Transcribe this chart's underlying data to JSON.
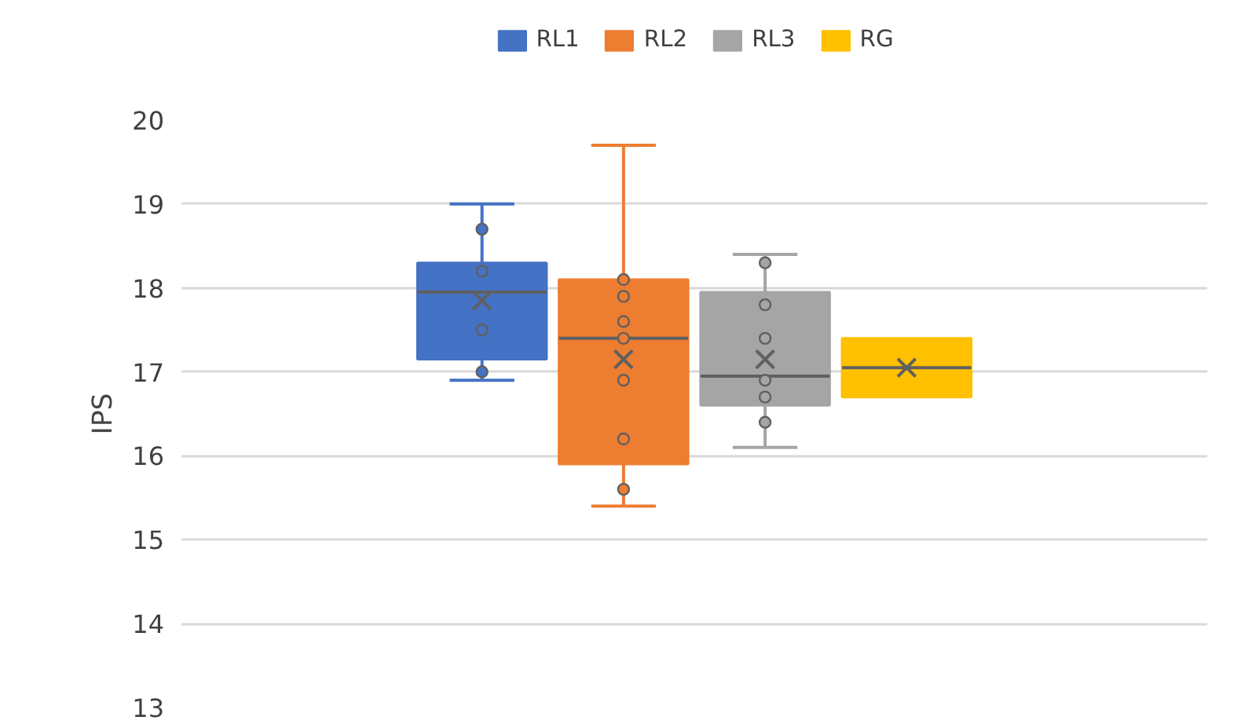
{
  "chart_data": {
    "type": "box",
    "ylabel": "IPS",
    "categories": [
      null
    ],
    "ylim": [
      13,
      20
    ],
    "yticks": [
      13,
      14,
      15,
      16,
      17,
      18,
      19,
      20
    ],
    "grid": "y",
    "legend": "top",
    "tick_labels": "y",
    "series": [
      {
        "name": "RL1",
        "color": "#4472c4",
        "boxes": [
          {
            "low": 16.9,
            "q1": 17.15,
            "median": 17.95,
            "q3": 18.3,
            "high": 19.0,
            "mean": 17.85
          }
        ]
      },
      {
        "name": "RL2",
        "color": "#ed7d31",
        "boxes": [
          {
            "low": 15.4,
            "q1": 15.9,
            "median": 17.4,
            "q3": 18.1,
            "high": 19.7,
            "mean": 17.15
          }
        ]
      },
      {
        "name": "RL3",
        "color": "#a5a5a5",
        "boxes": [
          {
            "low": 16.1,
            "q1": 16.6,
            "median": 16.95,
            "q3": 17.95,
            "high": 18.4,
            "mean": 17.15
          }
        ]
      },
      {
        "name": "RG",
        "color": "#ffc000",
        "boxes": [
          {
            "low": 16.7,
            "q1": 16.7,
            "median": 17.05,
            "q3": 17.4,
            "high": 17.4,
            "mean": 17.05
          }
        ]
      },
      {
        "type": "scatter",
        "color": "#4472c4",
        "x": [
          null,
          null,
          null,
          null
        ],
        "values": [
          18.7,
          18.2,
          17.5,
          17.0
        ]
      },
      {
        "type": "scatter",
        "color": "#ed7d31",
        "x": [
          null,
          null,
          null,
          null,
          null,
          null,
          null
        ],
        "values": [
          18.1,
          17.9,
          17.6,
          17.4,
          16.9,
          16.2,
          15.6
        ]
      },
      {
        "type": "scatter",
        "color": "#a5a5a5",
        "x": [
          null,
          null,
          null,
          null,
          null,
          null
        ],
        "values": [
          18.3,
          17.8,
          17.4,
          16.9,
          16.7,
          16.4
        ]
      }
    ]
  }
}
